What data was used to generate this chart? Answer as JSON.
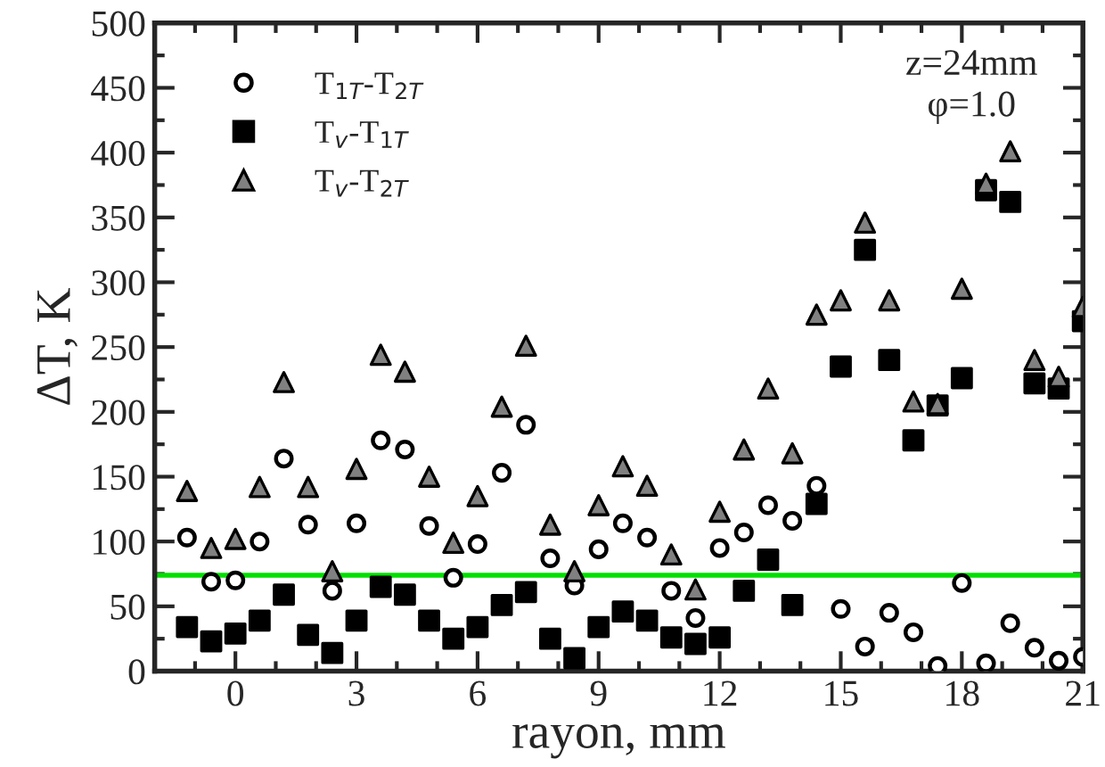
{
  "chart_data": {
    "type": "scatter",
    "xlabel": "rayon, mm",
    "ylabel": "ΔT, K",
    "x": [
      -1.2,
      -0.6,
      0.0,
      0.6,
      1.2,
      1.8,
      2.4,
      3.0,
      3.6,
      4.2,
      4.8,
      5.4,
      6.0,
      6.6,
      7.2,
      7.8,
      8.4,
      9.0,
      9.6,
      10.2,
      10.8,
      11.4,
      12.0,
      12.6,
      13.2,
      13.8,
      14.4,
      15.0,
      15.6,
      16.2,
      16.8,
      17.4,
      18.0,
      18.6,
      19.2,
      19.8,
      20.4,
      21.0
    ],
    "series": [
      {
        "name": "T$_{1T}$-T$_{2T}$",
        "marker": "circle",
        "color": "#ffffff",
        "values": [
          103,
          69,
          70,
          100,
          164,
          113,
          62,
          114,
          178,
          171,
          112,
          72,
          98,
          153,
          190,
          87,
          66,
          94,
          114,
          103,
          62,
          41,
          95,
          107,
          128,
          116,
          143,
          48,
          19,
          45,
          30,
          4,
          68,
          6,
          37,
          18,
          8,
          11
        ]
      },
      {
        "name": "T$_{v}$-T$_{1T}$",
        "marker": "square",
        "color": "#000000",
        "values": [
          34,
          23,
          29,
          39,
          59,
          28,
          14,
          39,
          65,
          59,
          39,
          25,
          34,
          51,
          61,
          25,
          10,
          34,
          46,
          39,
          26,
          21,
          26,
          62,
          86,
          51,
          129,
          235,
          325,
          240,
          178,
          205,
          226,
          371,
          362,
          222,
          218,
          270
        ]
      },
      {
        "name": "T$_{v}$-T$_{2T}$",
        "marker": "triangle",
        "color": "#808080",
        "values": [
          139,
          95,
          102,
          142,
          223,
          142,
          77,
          156,
          244,
          231,
          150,
          99,
          135,
          204,
          251,
          113,
          77,
          128,
          158,
          143,
          90,
          63,
          123,
          171,
          218,
          168,
          275,
          286,
          346,
          286,
          208,
          206,
          295,
          376,
          401,
          240,
          227,
          281
        ]
      }
    ],
    "xlim": [
      -2,
      21
    ],
    "xticks": [
      0,
      3,
      6,
      9,
      12,
      15,
      18,
      21
    ],
    "ylim": [
      0,
      500
    ],
    "yticks": [
      0,
      50,
      100,
      150,
      200,
      250,
      300,
      350,
      400,
      450,
      500
    ],
    "ref_lines": [
      {
        "axis": "y",
        "value": 74,
        "color": "#00e000"
      }
    ],
    "annotations": [
      "z=24mm\nφ=1.0"
    ],
    "legend": "top left",
    "grid": false
  }
}
